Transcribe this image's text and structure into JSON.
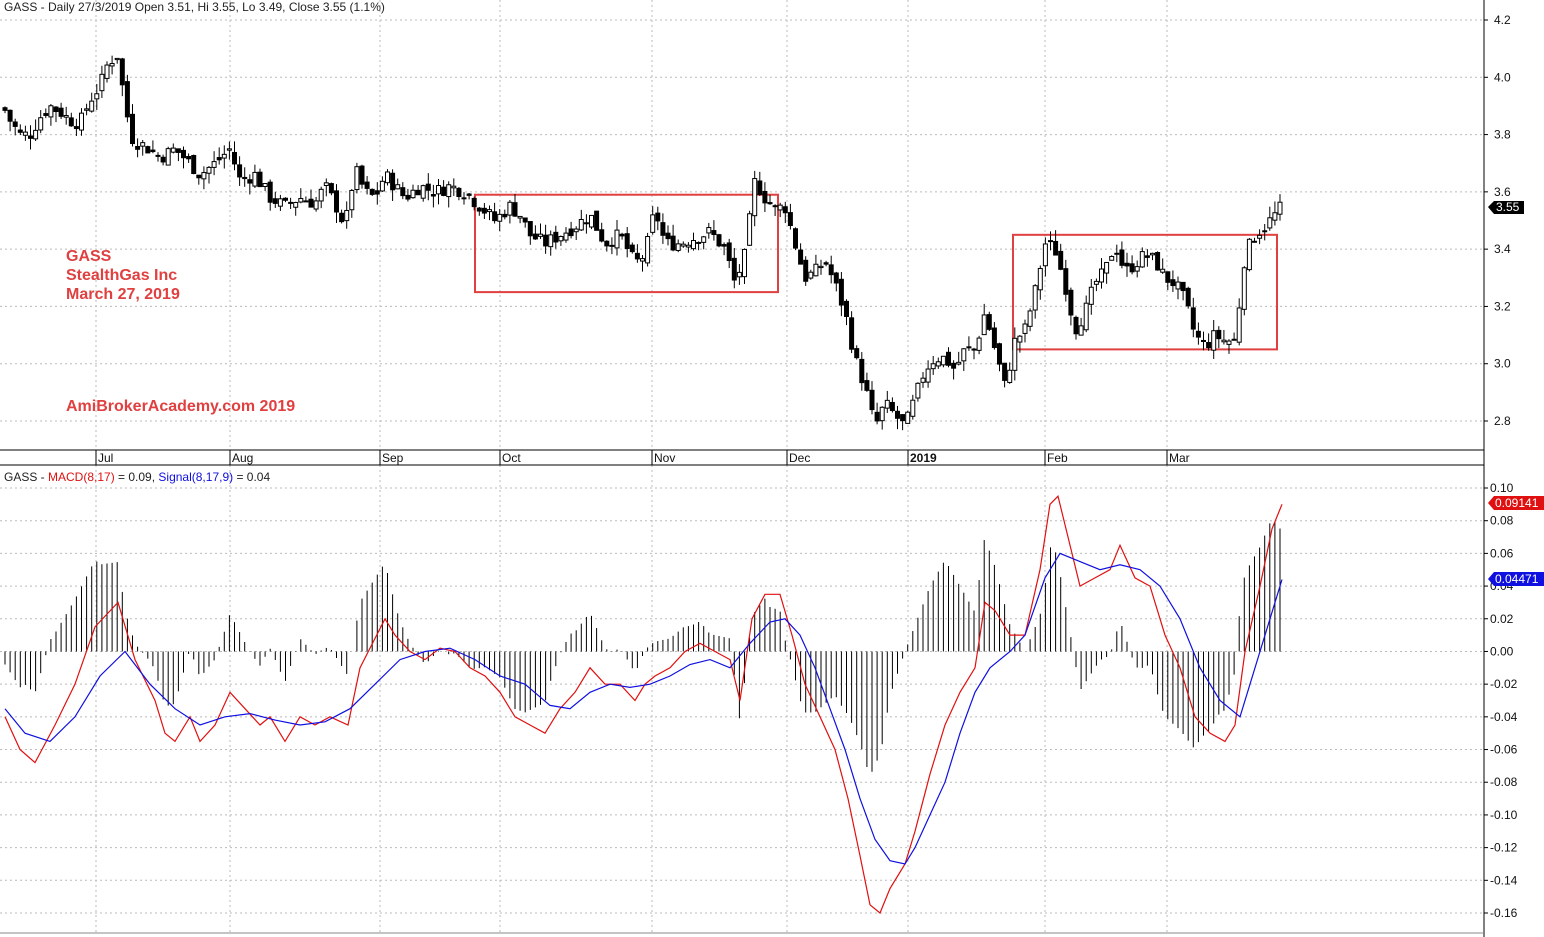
{
  "header": {
    "price_caption": "GASS - Daily 27/3/2019 Open 3.51, Hi 3.55, Lo 3.49, Close 3.55 (1.1%)",
    "macd_prefix": "GASS - ",
    "macd_label": "MACD(8,17)",
    "macd_value": " = 0.09, ",
    "signal_label": "Signal(8,17,9)",
    "signal_value": " = 0.04"
  },
  "annotations": {
    "ticker": "GASS",
    "company": "StealthGas Inc",
    "date": "March 27, 2019",
    "watermark": "AmiBrokerAcademy.com   2019"
  },
  "badges": {
    "last_price": "3.55",
    "macd_last": "0.09141",
    "signal_last": "0.04471"
  },
  "colors": {
    "macd": "#e01010",
    "signal": "#1010e0",
    "annotation": "#e04040",
    "box": "#e04040",
    "up_candle": "#ffffff",
    "down_candle": "#000000"
  },
  "chart_data": [
    {
      "type": "candlestick",
      "title": "GASS - Daily 27/3/2019 Open 3.51, Hi 3.55, Lo 3.49, Close 3.55 (1.1%)",
      "x_ticks": [
        "Jul",
        "Aug",
        "Sep",
        "Oct",
        "Nov",
        "Dec",
        "2019",
        "Feb",
        "Mar"
      ],
      "y_ticks": [
        2.8,
        3.0,
        3.2,
        3.4,
        3.6,
        3.8,
        4.0,
        4.2
      ],
      "ylim": [
        2.7,
        4.25
      ],
      "grid": true,
      "close_series_approx": [
        [
          0,
          3.92
        ],
        [
          10,
          3.85
        ],
        [
          20,
          3.8
        ],
        [
          30,
          3.8
        ],
        [
          40,
          3.86
        ],
        [
          50,
          3.9
        ],
        [
          60,
          3.88
        ],
        [
          70,
          3.85
        ],
        [
          80,
          3.84
        ],
        [
          90,
          3.92
        ],
        [
          100,
          3.97
        ],
        [
          108,
          4.05
        ],
        [
          118,
          4.08
        ],
        [
          125,
          3.9
        ],
        [
          133,
          3.78
        ],
        [
          145,
          3.76
        ],
        [
          160,
          3.72
        ],
        [
          175,
          3.75
        ],
        [
          190,
          3.7
        ],
        [
          200,
          3.66
        ],
        [
          215,
          3.7
        ],
        [
          230,
          3.75
        ],
        [
          240,
          3.64
        ],
        [
          255,
          3.66
        ],
        [
          270,
          3.58
        ],
        [
          285,
          3.55
        ],
        [
          300,
          3.58
        ],
        [
          315,
          3.56
        ],
        [
          325,
          3.62
        ],
        [
          335,
          3.56
        ],
        [
          345,
          3.48
        ],
        [
          355,
          3.68
        ],
        [
          365,
          3.6
        ],
        [
          375,
          3.58
        ],
        [
          385,
          3.66
        ],
        [
          395,
          3.62
        ],
        [
          405,
          3.58
        ],
        [
          420,
          3.62
        ],
        [
          435,
          3.6
        ],
        [
          450,
          3.62
        ],
        [
          465,
          3.6
        ],
        [
          480,
          3.55
        ],
        [
          495,
          3.5
        ],
        [
          510,
          3.55
        ],
        [
          520,
          3.52
        ],
        [
          530,
          3.45
        ],
        [
          545,
          3.42
        ],
        [
          560,
          3.45
        ],
        [
          575,
          3.48
        ],
        [
          590,
          3.52
        ],
        [
          605,
          3.42
        ],
        [
          620,
          3.45
        ],
        [
          635,
          3.35
        ],
        [
          645,
          3.38
        ],
        [
          655,
          3.54
        ],
        [
          665,
          3.42
        ],
        [
          680,
          3.42
        ],
        [
          695,
          3.44
        ],
        [
          710,
          3.46
        ],
        [
          725,
          3.4
        ],
        [
          735,
          3.28
        ],
        [
          745,
          3.38
        ],
        [
          755,
          3.64
        ],
        [
          765,
          3.58
        ],
        [
          775,
          3.54
        ],
        [
          785,
          3.55
        ],
        [
          795,
          3.42
        ],
        [
          805,
          3.3
        ],
        [
          815,
          3.32
        ],
        [
          825,
          3.36
        ],
        [
          835,
          3.28
        ],
        [
          845,
          3.18
        ],
        [
          855,
          3.02
        ],
        [
          865,
          2.92
        ],
        [
          875,
          2.78
        ],
        [
          885,
          2.86
        ],
        [
          895,
          2.82
        ],
        [
          905,
          2.78
        ],
        [
          915,
          2.88
        ],
        [
          925,
          2.98
        ],
        [
          935,
          3.02
        ],
        [
          945,
          3.02
        ],
        [
          955,
          2.98
        ],
        [
          965,
          3.05
        ],
        [
          975,
          3.05
        ],
        [
          985,
          3.18
        ],
        [
          995,
          3.05
        ],
        [
          1005,
          2.92
        ],
        [
          1015,
          3.08
        ],
        [
          1025,
          3.12
        ],
        [
          1035,
          3.25
        ],
        [
          1045,
          3.42
        ],
        [
          1055,
          3.4
        ],
        [
          1065,
          3.28
        ],
        [
          1075,
          3.12
        ],
        [
          1085,
          3.18
        ],
        [
          1095,
          3.28
        ],
        [
          1105,
          3.32
        ],
        [
          1115,
          3.42
        ],
        [
          1125,
          3.32
        ],
        [
          1135,
          3.35
        ],
        [
          1145,
          3.38
        ],
        [
          1155,
          3.36
        ],
        [
          1165,
          3.3
        ],
        [
          1175,
          3.28
        ],
        [
          1185,
          3.22
        ],
        [
          1195,
          3.1
        ],
        [
          1205,
          3.06
        ],
        [
          1215,
          3.1
        ],
        [
          1225,
          3.08
        ],
        [
          1235,
          3.08
        ],
        [
          1245,
          3.38
        ],
        [
          1255,
          3.45
        ],
        [
          1265,
          3.48
        ],
        [
          1275,
          3.52
        ],
        [
          1282,
          3.55
        ]
      ],
      "rectangles": [
        {
          "from_x": 475,
          "to_x": 778,
          "low": 3.25,
          "high": 3.59
        },
        {
          "from_x": 1013,
          "to_x": 1277,
          "low": 3.05,
          "high": 3.45
        }
      ]
    },
    {
      "type": "line",
      "title": "GASS - MACD(8,17) = 0.09, Signal(8,17,9) = 0.04",
      "y_ticks": [
        -0.16,
        -0.14,
        -0.12,
        -0.1,
        -0.08,
        -0.06,
        -0.04,
        -0.02,
        0.0,
        0.02,
        0.04,
        0.06,
        0.08,
        0.1
      ],
      "ylim": [
        -0.168,
        0.106
      ],
      "grid": true,
      "series": [
        {
          "name": "MACD(8,17)",
          "values": [
            [
              5,
              -0.04
            ],
            [
              20,
              -0.06
            ],
            [
              35,
              -0.068
            ],
            [
              55,
              -0.045
            ],
            [
              75,
              -0.02
            ],
            [
              95,
              0.015
            ],
            [
              118,
              0.03
            ],
            [
              135,
              -0.005
            ],
            [
              155,
              -0.03
            ],
            [
              165,
              -0.05
            ],
            [
              175,
              -0.055
            ],
            [
              190,
              -0.04
            ],
            [
              200,
              -0.055
            ],
            [
              215,
              -0.045
            ],
            [
              230,
              -0.025
            ],
            [
              245,
              -0.035
            ],
            [
              260,
              -0.045
            ],
            [
              270,
              -0.04
            ],
            [
              285,
              -0.055
            ],
            [
              300,
              -0.04
            ],
            [
              315,
              -0.045
            ],
            [
              330,
              -0.04
            ],
            [
              348,
              -0.045
            ],
            [
              360,
              -0.01
            ],
            [
              375,
              0.008
            ],
            [
              385,
              0.02
            ],
            [
              395,
              0.01
            ],
            [
              410,
              0.0
            ],
            [
              425,
              -0.005
            ],
            [
              440,
              0.002
            ],
            [
              455,
              0.0
            ],
            [
              470,
              -0.01
            ],
            [
              485,
              -0.015
            ],
            [
              500,
              -0.025
            ],
            [
              515,
              -0.04
            ],
            [
              530,
              -0.045
            ],
            [
              545,
              -0.05
            ],
            [
              560,
              -0.035
            ],
            [
              575,
              -0.025
            ],
            [
              590,
              -0.01
            ],
            [
              605,
              -0.02
            ],
            [
              620,
              -0.02
            ],
            [
              635,
              -0.03
            ],
            [
              645,
              -0.02
            ],
            [
              655,
              -0.015
            ],
            [
              670,
              -0.01
            ],
            [
              685,
              0.0
            ],
            [
              700,
              0.005
            ],
            [
              715,
              0.0
            ],
            [
              730,
              -0.005
            ],
            [
              740,
              -0.03
            ],
            [
              752,
              0.02
            ],
            [
              765,
              0.035
            ],
            [
              780,
              0.035
            ],
            [
              792,
              0.01
            ],
            [
              805,
              -0.02
            ],
            [
              820,
              -0.04
            ],
            [
              835,
              -0.06
            ],
            [
              848,
              -0.09
            ],
            [
              860,
              -0.125
            ],
            [
              870,
              -0.155
            ],
            [
              880,
              -0.16
            ],
            [
              890,
              -0.145
            ],
            [
              905,
              -0.13
            ],
            [
              915,
              -0.11
            ],
            [
              930,
              -0.075
            ],
            [
              945,
              -0.045
            ],
            [
              960,
              -0.025
            ],
            [
              975,
              -0.01
            ],
            [
              985,
              0.03
            ],
            [
              995,
              0.025
            ],
            [
              1010,
              0.01
            ],
            [
              1025,
              0.01
            ],
            [
              1040,
              0.05
            ],
            [
              1050,
              0.09
            ],
            [
              1058,
              0.095
            ],
            [
              1068,
              0.07
            ],
            [
              1080,
              0.04
            ],
            [
              1095,
              0.045
            ],
            [
              1110,
              0.05
            ],
            [
              1120,
              0.065
            ],
            [
              1135,
              0.045
            ],
            [
              1150,
              0.04
            ],
            [
              1165,
              0.01
            ],
            [
              1180,
              -0.01
            ],
            [
              1195,
              -0.04
            ],
            [
              1210,
              -0.05
            ],
            [
              1225,
              -0.055
            ],
            [
              1235,
              -0.045
            ],
            [
              1245,
              0.0
            ],
            [
              1260,
              0.04
            ],
            [
              1272,
              0.075
            ],
            [
              1282,
              0.09
            ]
          ]
        },
        {
          "name": "Signal(8,17,9)",
          "values": [
            [
              5,
              -0.035
            ],
            [
              25,
              -0.05
            ],
            [
              50,
              -0.055
            ],
            [
              75,
              -0.04
            ],
            [
              100,
              -0.015
            ],
            [
              125,
              0.0
            ],
            [
              150,
              -0.02
            ],
            [
              175,
              -0.035
            ],
            [
              200,
              -0.045
            ],
            [
              225,
              -0.04
            ],
            [
              250,
              -0.038
            ],
            [
              275,
              -0.042
            ],
            [
              300,
              -0.045
            ],
            [
              325,
              -0.043
            ],
            [
              350,
              -0.035
            ],
            [
              375,
              -0.02
            ],
            [
              400,
              -0.005
            ],
            [
              425,
              0.0
            ],
            [
              450,
              0.002
            ],
            [
              475,
              -0.005
            ],
            [
              500,
              -0.015
            ],
            [
              525,
              -0.02
            ],
            [
              550,
              -0.033
            ],
            [
              570,
              -0.035
            ],
            [
              590,
              -0.025
            ],
            [
              610,
              -0.02
            ],
            [
              630,
              -0.022
            ],
            [
              650,
              -0.02
            ],
            [
              670,
              -0.015
            ],
            [
              690,
              -0.008
            ],
            [
              710,
              -0.005
            ],
            [
              730,
              -0.01
            ],
            [
              750,
              0.005
            ],
            [
              770,
              0.018
            ],
            [
              785,
              0.02
            ],
            [
              800,
              0.01
            ],
            [
              815,
              -0.01
            ],
            [
              830,
              -0.035
            ],
            [
              845,
              -0.06
            ],
            [
              860,
              -0.09
            ],
            [
              875,
              -0.115
            ],
            [
              890,
              -0.128
            ],
            [
              905,
              -0.13
            ],
            [
              915,
              -0.12
            ],
            [
              930,
              -0.1
            ],
            [
              945,
              -0.08
            ],
            [
              960,
              -0.05
            ],
            [
              975,
              -0.025
            ],
            [
              990,
              -0.01
            ],
            [
              1010,
              0.0
            ],
            [
              1025,
              0.01
            ],
            [
              1045,
              0.045
            ],
            [
              1060,
              0.06
            ],
            [
              1080,
              0.055
            ],
            [
              1100,
              0.05
            ],
            [
              1120,
              0.053
            ],
            [
              1140,
              0.05
            ],
            [
              1160,
              0.04
            ],
            [
              1180,
              0.02
            ],
            [
              1200,
              -0.01
            ],
            [
              1220,
              -0.03
            ],
            [
              1240,
              -0.04
            ],
            [
              1255,
              -0.01
            ],
            [
              1270,
              0.02
            ],
            [
              1282,
              0.044
            ]
          ]
        }
      ]
    }
  ]
}
